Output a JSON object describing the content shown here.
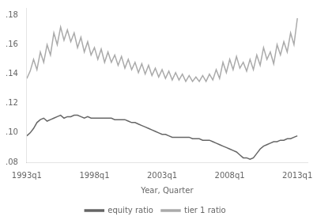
{
  "chart_data": {
    "type": "line",
    "xlabel": "Year, Quarter",
    "categories": [
      "1993q1",
      null,
      null,
      null,
      null,
      null,
      null,
      null,
      null,
      null,
      null,
      null,
      null,
      null,
      null,
      null,
      null,
      null,
      null,
      null,
      "1998q1",
      null,
      null,
      null,
      null,
      null,
      null,
      null,
      null,
      null,
      null,
      null,
      null,
      null,
      null,
      null,
      null,
      null,
      null,
      null,
      "2003q1",
      null,
      null,
      null,
      null,
      null,
      null,
      null,
      null,
      null,
      null,
      null,
      null,
      null,
      null,
      null,
      null,
      null,
      null,
      null,
      "2008q1",
      null,
      null,
      null,
      null,
      null,
      null,
      null,
      null,
      null,
      null,
      null,
      null,
      null,
      null,
      null,
      null,
      null,
      null,
      null,
      "2013q1"
    ],
    "xlim": [
      0,
      83
    ],
    "ylim": [
      0.08,
      0.185
    ],
    "yticks": [
      {
        "value": 0.08,
        "label": ".08"
      },
      {
        "value": 0.1,
        "label": ".10"
      },
      {
        "value": 0.12,
        "label": ".12"
      },
      {
        "value": 0.14,
        "label": ".14"
      },
      {
        "value": 0.16,
        "label": ".16"
      },
      {
        "value": 0.18,
        "label": ".18"
      }
    ],
    "grid": false,
    "legend": "bottom",
    "series": [
      {
        "name": "equity ratio",
        "color": "#666666",
        "values": [
          0.098,
          0.1,
          0.103,
          0.107,
          0.109,
          0.11,
          0.108,
          0.109,
          0.11,
          0.111,
          0.112,
          0.11,
          0.111,
          0.111,
          0.112,
          0.112,
          0.111,
          0.11,
          0.111,
          0.11,
          0.11,
          0.11,
          0.11,
          0.11,
          0.11,
          0.11,
          0.109,
          0.109,
          0.109,
          0.109,
          0.108,
          0.107,
          0.107,
          0.106,
          0.105,
          0.104,
          0.103,
          0.102,
          0.101,
          0.1,
          0.099,
          0.099,
          0.098,
          0.097,
          0.097,
          0.097,
          0.097,
          0.097,
          0.097,
          0.096,
          0.096,
          0.096,
          0.095,
          0.095,
          0.095,
          0.094,
          0.093,
          0.092,
          0.091,
          0.09,
          0.089,
          0.088,
          0.087,
          0.085,
          0.083,
          0.083,
          0.082,
          0.083,
          0.086,
          0.089,
          0.091,
          0.092,
          0.093,
          0.094,
          0.094,
          0.095,
          0.095,
          0.096,
          0.096,
          0.097,
          0.098
        ]
      },
      {
        "name": "tier 1 ratio",
        "color": "#aaaaaa",
        "values": [
          0.137,
          0.142,
          0.15,
          0.143,
          0.155,
          0.148,
          0.16,
          0.153,
          0.168,
          0.16,
          0.172,
          0.163,
          0.17,
          0.162,
          0.168,
          0.158,
          0.165,
          0.155,
          0.162,
          0.153,
          0.158,
          0.15,
          0.157,
          0.148,
          0.155,
          0.148,
          0.153,
          0.146,
          0.152,
          0.144,
          0.15,
          0.143,
          0.148,
          0.141,
          0.147,
          0.14,
          0.146,
          0.139,
          0.144,
          0.138,
          0.143,
          0.137,
          0.142,
          0.136,
          0.141,
          0.136,
          0.14,
          0.135,
          0.139,
          0.135,
          0.138,
          0.135,
          0.139,
          0.135,
          0.14,
          0.136,
          0.143,
          0.137,
          0.148,
          0.141,
          0.15,
          0.143,
          0.152,
          0.144,
          0.148,
          0.142,
          0.15,
          0.143,
          0.153,
          0.146,
          0.158,
          0.15,
          0.155,
          0.147,
          0.16,
          0.153,
          0.162,
          0.155,
          0.168,
          0.16,
          0.178
        ]
      }
    ]
  }
}
